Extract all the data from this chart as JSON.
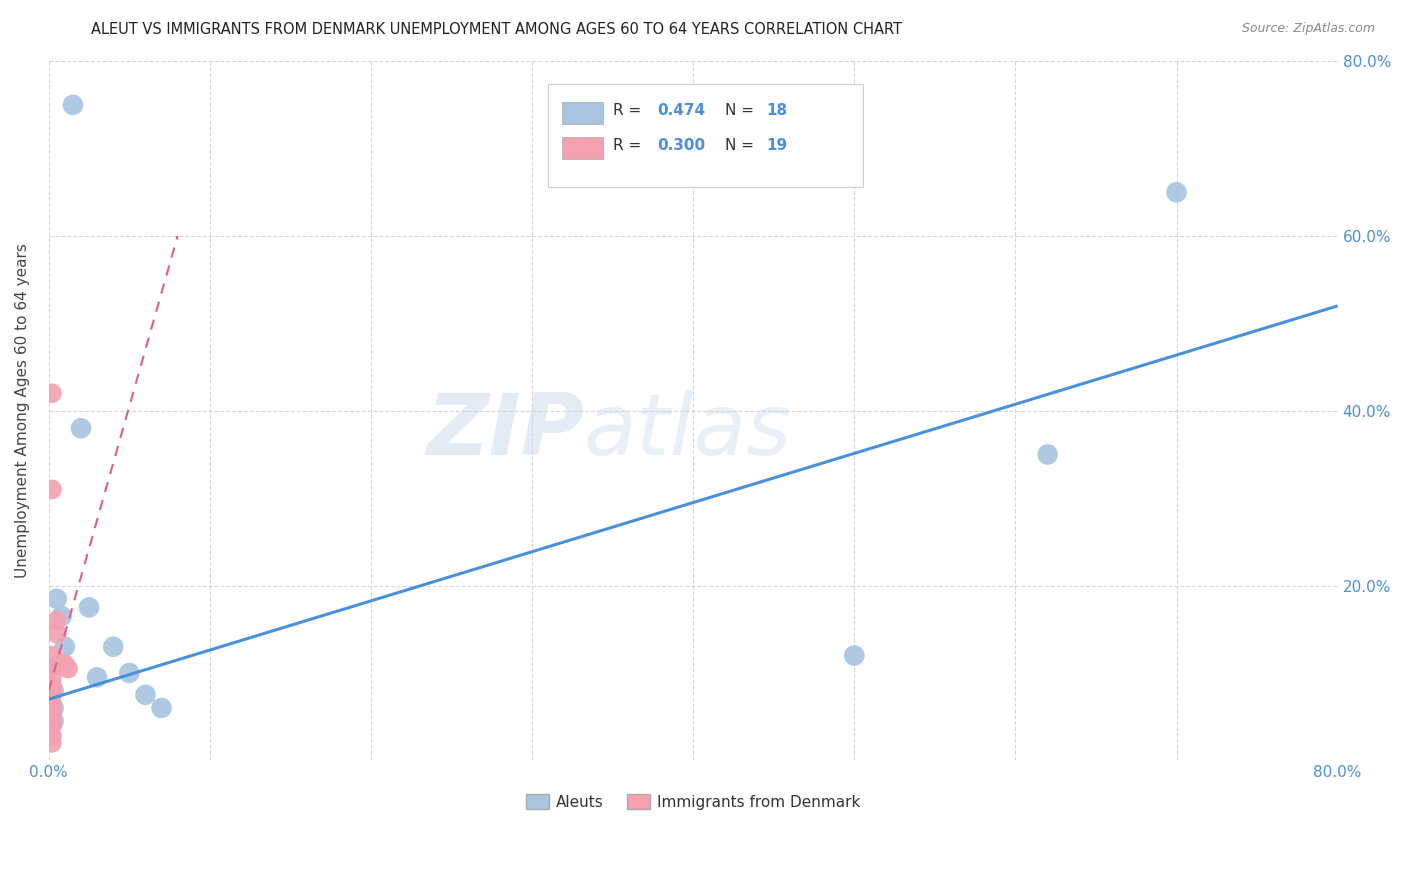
{
  "title": "ALEUT VS IMMIGRANTS FROM DENMARK UNEMPLOYMENT AMONG AGES 60 TO 64 YEARS CORRELATION CHART",
  "source": "Source: ZipAtlas.com",
  "ylabel": "Unemployment Among Ages 60 to 64 years",
  "xlim": [
    0.0,
    0.8
  ],
  "ylim": [
    0.0,
    0.8
  ],
  "aleuts_x": [
    0.015,
    0.005,
    0.008,
    0.01,
    0.003,
    0.003,
    0.003,
    0.02,
    0.04,
    0.05,
    0.06,
    0.07,
    0.005,
    0.5,
    0.7,
    0.62,
    0.025,
    0.03
  ],
  "aleuts_y": [
    0.75,
    0.185,
    0.165,
    0.13,
    0.08,
    0.06,
    0.045,
    0.38,
    0.13,
    0.1,
    0.075,
    0.06,
    0.11,
    0.12,
    0.65,
    0.35,
    0.175,
    0.095
  ],
  "denmark_x": [
    0.002,
    0.002,
    0.002,
    0.002,
    0.002,
    0.002,
    0.002,
    0.002,
    0.005,
    0.005,
    0.008,
    0.01,
    0.012,
    0.002,
    0.002,
    0.002,
    0.002,
    0.002,
    0.002
  ],
  "denmark_y": [
    0.42,
    0.31,
    0.12,
    0.105,
    0.095,
    0.085,
    0.075,
    0.065,
    0.16,
    0.145,
    0.11,
    0.11,
    0.105,
    0.055,
    0.05,
    0.045,
    0.04,
    0.028,
    0.02
  ],
  "aleuts_color": "#a8c4e0",
  "denmark_color": "#f4a0b0",
  "aleuts_line_color": "#4a90d9",
  "denmark_line_color": "#e06080",
  "aleuts_R": "0.474",
  "aleuts_N": "18",
  "denmark_R": "0.300",
  "denmark_N": "19",
  "legend_aleuts": "Aleuts",
  "legend_denmark": "Immigrants from Denmark",
  "background_color": "#ffffff",
  "grid_color": "#cccccc",
  "blue_line_x0": 0.0,
  "blue_line_x1": 0.8,
  "blue_line_y0": 0.07,
  "blue_line_y1": 0.52,
  "pink_line_x0": 0.0,
  "pink_line_x1": 0.08,
  "pink_line_y0": 0.08,
  "pink_line_y1": 0.6
}
